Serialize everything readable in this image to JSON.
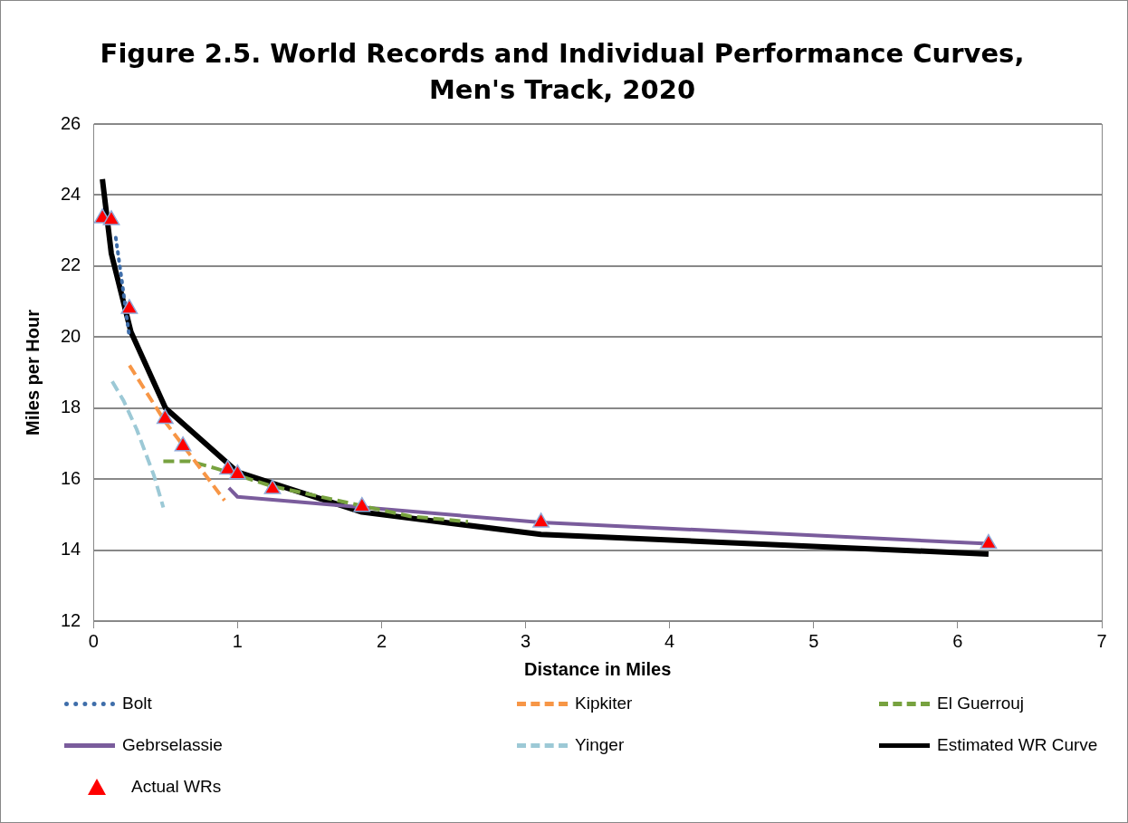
{
  "chart_data": {
    "type": "line",
    "title": "Figure 2.5. World Records and Individual Performance Curves, Men's Track, 2020",
    "xlabel": "Distance in Miles",
    "ylabel": "Miles per Hour",
    "xlim": [
      0,
      7
    ],
    "xticks": [
      0,
      1,
      2,
      3,
      4,
      5,
      6,
      7
    ],
    "ylim": [
      12,
      26
    ],
    "yticks": [
      12,
      14,
      16,
      18,
      20,
      22,
      24,
      26
    ],
    "grid": "y",
    "legend": "bottom",
    "marker": "none",
    "series": [
      {
        "name": "Bolt",
        "color": "#3f6eaa",
        "line_style": "dotted",
        "x": [
          0.155,
          0.2,
          0.246
        ],
        "values": [
          22.8,
          21.5,
          20.1
        ]
      },
      {
        "name": "Kipkiter",
        "color": "#f79646",
        "line_style": "dashed",
        "x": [
          0.25,
          0.5,
          0.91
        ],
        "values": [
          19.2,
          17.6,
          15.4
        ]
      },
      {
        "name": "El Guerrouj",
        "color": "#77a23f",
        "line_style": "dashed",
        "x": [
          0.485,
          0.67,
          0.85,
          1.24,
          2.2,
          2.6
        ],
        "values": [
          16.5,
          16.5,
          16.3,
          15.8,
          14.95,
          14.8
        ]
      },
      {
        "name": "Gebrselassie",
        "color": "#7a5c9c",
        "line_style": "solid",
        "x": [
          0.94,
          1.0,
          3.107,
          6.214
        ],
        "values": [
          15.75,
          15.5,
          14.78,
          14.18
        ]
      },
      {
        "name": "Yinger",
        "color": "#9cc9d6",
        "line_style": "dashed",
        "x": [
          0.13,
          0.21,
          0.3,
          0.42,
          0.485
        ],
        "values": [
          18.75,
          18.2,
          17.4,
          16.1,
          15.2
        ]
      },
      {
        "name": "Estimated WR Curve",
        "color": "#000000",
        "line_style": "solid",
        "x": [
          0.062,
          0.124,
          0.26,
          0.5,
          1.0,
          1.864,
          3.107,
          6.214
        ],
        "values": [
          24.45,
          22.35,
          20.15,
          18.0,
          16.2,
          15.07,
          14.44,
          13.89
        ]
      },
      {
        "name": "Actual WRs",
        "type": "scatter",
        "marker": "triangle",
        "color": "#ff0000",
        "x": [
          0.062,
          0.124,
          0.249,
          0.497,
          0.621,
          0.932,
          1.0,
          1.243,
          1.864,
          3.107,
          6.214
        ],
        "values": [
          23.35,
          23.3,
          20.8,
          17.7,
          16.93,
          16.27,
          16.14,
          15.72,
          15.22,
          14.78,
          14.18
        ]
      }
    ]
  }
}
